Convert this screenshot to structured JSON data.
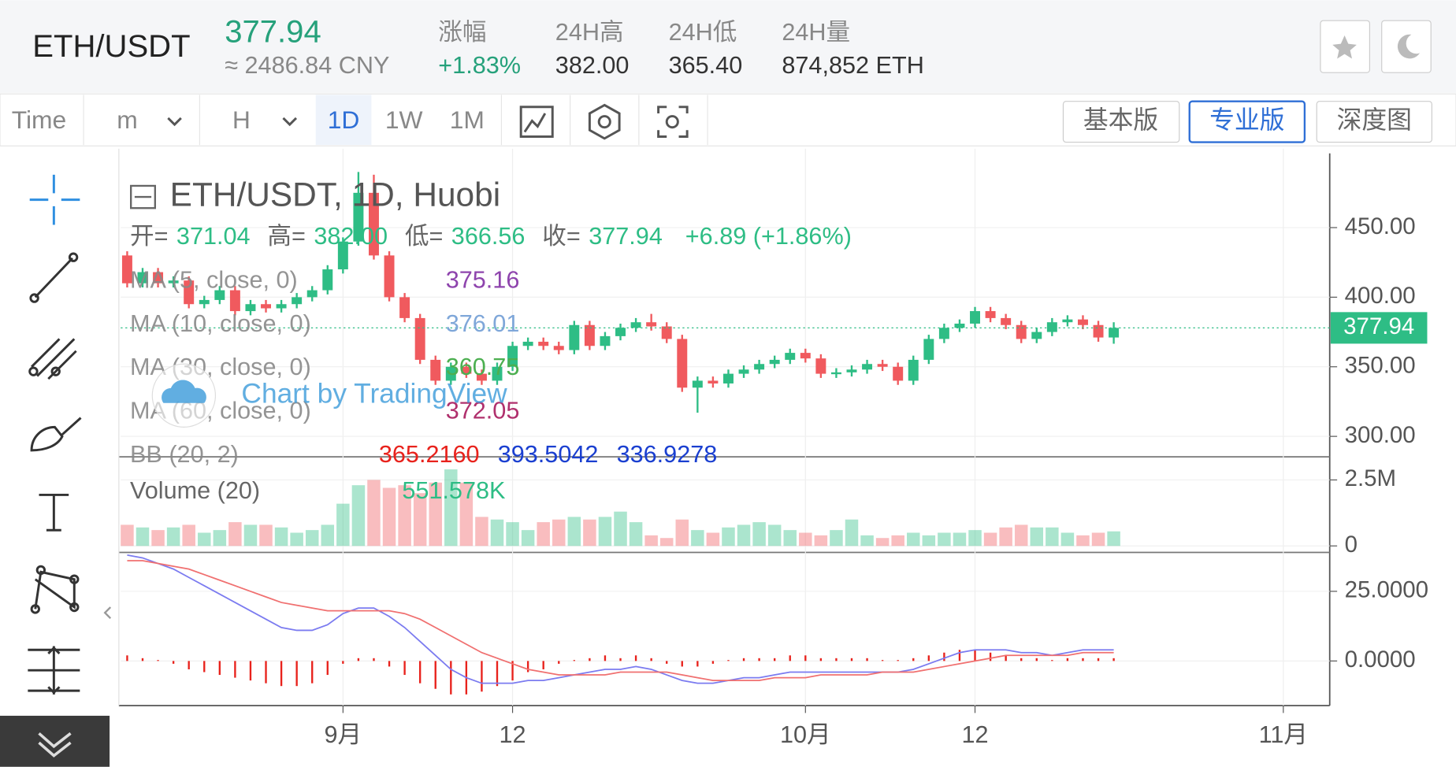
{
  "header": {
    "symbol": "ETH/USDT",
    "price": "377.94",
    "cny": "≈ 2486.84 CNY",
    "stats": [
      {
        "label": "涨幅",
        "value": "+1.83%"
      },
      {
        "label": "24H高",
        "value": "382.00"
      },
      {
        "label": "24H低",
        "value": "365.40"
      },
      {
        "label": "24H量",
        "value": "874,852 ETH"
      }
    ]
  },
  "toolbar": {
    "time": "Time",
    "intervals": [
      "m",
      "H",
      "1D",
      "1W",
      "1M"
    ],
    "versions": [
      "基本版",
      "专业版",
      "深度图"
    ]
  },
  "chart_data": {
    "type": "candlestick",
    "title": "ETH/USDT, 1D, Huobi",
    "ohlc_legend": [
      {
        "label": "开=",
        "value": "371.04"
      },
      {
        "label": "高=",
        "value": "382.00"
      },
      {
        "label": "低=",
        "value": "366.56"
      },
      {
        "label": "收=",
        "value": "377.94"
      }
    ],
    "change": "+6.89 (+1.86%)",
    "indicators": [
      {
        "name": "MA (5, close, 0)",
        "values": [
          "375.16"
        ],
        "colors": [
          "#8e44ad"
        ]
      },
      {
        "name": "MA (10, close, 0)",
        "values": [
          "376.01"
        ],
        "colors": [
          "#7fa7d9"
        ]
      },
      {
        "name": "MA (30, close, 0)",
        "values": [
          "360.75"
        ],
        "colors": [
          "#4caf50"
        ]
      },
      {
        "name": "MA (60, close, 0)",
        "values": [
          "372.05"
        ],
        "colors": [
          "#b0306d"
        ]
      },
      {
        "name": "BB (20, 2)",
        "values": [
          "365.2160",
          "393.5042",
          "336.9278"
        ],
        "colors": [
          "#e8221c",
          "#1a3fd0",
          "#1a3fd0"
        ]
      }
    ],
    "watermark": "Chart by TradingView",
    "up_color": "#2ebd85",
    "down_color": "#f05a5e",
    "x": [
      0,
      1,
      2,
      3,
      4,
      5,
      6,
      7,
      8,
      9,
      10,
      11,
      12,
      13,
      14,
      15,
      16,
      17,
      18,
      19,
      20,
      21,
      22,
      23,
      24,
      25,
      26,
      27,
      28,
      29,
      30,
      31,
      32,
      33,
      34,
      35,
      36,
      37,
      38,
      39,
      40,
      41,
      42,
      43,
      44,
      45,
      46,
      47,
      48,
      49,
      50,
      51,
      52,
      53,
      54,
      55,
      56,
      57,
      58,
      59,
      60,
      61,
      62,
      63,
      64
    ],
    "open": [
      430,
      410,
      418,
      410,
      412,
      395,
      398,
      405,
      390,
      395,
      392,
      395,
      400,
      405,
      420,
      440,
      475,
      430,
      400,
      385,
      355,
      340,
      350,
      345,
      340,
      350,
      365,
      368,
      365,
      362,
      380,
      365,
      372,
      378,
      382,
      379,
      370,
      335,
      340,
      338,
      345,
      348,
      352,
      355,
      360,
      356,
      345,
      346,
      348,
      352,
      350,
      340,
      355,
      370,
      378,
      381,
      390,
      385,
      380,
      370,
      375,
      382,
      384,
      380,
      371.04
    ],
    "high": [
      433,
      421,
      421,
      415,
      415,
      401,
      408,
      408,
      398,
      398,
      398,
      403,
      408,
      423,
      443,
      490,
      488,
      433,
      403,
      388,
      358,
      353,
      353,
      348,
      353,
      368,
      371,
      371,
      368,
      383,
      383,
      375,
      381,
      385,
      388,
      382,
      373,
      343,
      343,
      348,
      351,
      355,
      358,
      363,
      363,
      359,
      349,
      351,
      355,
      355,
      353,
      358,
      373,
      381,
      384,
      393,
      393,
      388,
      383,
      378,
      385,
      387,
      387,
      383,
      382
    ],
    "low": [
      407,
      407,
      407,
      407,
      392,
      392,
      395,
      387,
      387,
      389,
      389,
      392,
      397,
      402,
      417,
      437,
      427,
      397,
      382,
      352,
      337,
      337,
      342,
      337,
      337,
      347,
      362,
      362,
      359,
      359,
      362,
      362,
      369,
      375,
      376,
      367,
      332,
      317,
      335,
      335,
      342,
      345,
      349,
      352,
      353,
      342,
      342,
      343,
      345,
      347,
      337,
      337,
      352,
      367,
      375,
      378,
      382,
      377,
      367,
      367,
      372,
      379,
      377,
      368,
      366.56
    ],
    "close": [
      410,
      418,
      410,
      412,
      395,
      398,
      405,
      390,
      395,
      392,
      395,
      400,
      405,
      420,
      440,
      475,
      430,
      400,
      385,
      355,
      340,
      350,
      345,
      340,
      350,
      365,
      368,
      365,
      362,
      380,
      365,
      372,
      378,
      382,
      379,
      370,
      335,
      340,
      338,
      345,
      348,
      352,
      355,
      360,
      356,
      345,
      346,
      348,
      352,
      350,
      340,
      355,
      370,
      378,
      381,
      390,
      385,
      380,
      370,
      375,
      382,
      384,
      380,
      371.04,
      377.94
    ],
    "xlim": [
      -0.42,
      78.01
    ],
    "xticks": [
      {
        "value": 14,
        "label": "9月"
      },
      {
        "value": 25,
        "label": "12"
      },
      {
        "value": 44,
        "label": "10月"
      },
      {
        "value": 55,
        "label": "12"
      },
      {
        "value": 75,
        "label": "11月"
      }
    ],
    "ylim": [
      285.3,
      506.7
    ],
    "yticks": [
      {
        "value": 300,
        "label": "300.00"
      },
      {
        "value": 350,
        "label": "350.00"
      },
      {
        "value": 400,
        "label": "400.00"
      },
      {
        "value": 450,
        "label": "450.00"
      }
    ],
    "last_label": "377.94",
    "volume": {
      "title": "Volume (20)",
      "legend": "551.578K",
      "ylim": [
        0,
        3200000
      ],
      "yticks": [
        0,
        {
          "value": 2500000,
          "label": "2.5M"
        }
      ],
      "values": [
        800000,
        700000,
        600000,
        700000,
        800000,
        500000,
        600000,
        900000,
        800000,
        800000,
        700000,
        500000,
        600000,
        800000,
        1600000,
        2300000,
        2500000,
        2200000,
        2300000,
        2000000,
        2400000,
        2900000,
        2400000,
        1100000,
        1000000,
        900000,
        600000,
        900000,
        1000000,
        1100000,
        1000000,
        1100000,
        1300000,
        900000,
        400000,
        300000,
        1000000,
        600000,
        500000,
        700000,
        800000,
        900000,
        800000,
        600000,
        500000,
        400000,
        600000,
        1000000,
        400000,
        300000,
        400000,
        500000,
        400000,
        500000,
        500000,
        600000,
        500000,
        700000,
        800000,
        700000,
        700000,
        500000,
        400000,
        500000,
        551578
      ]
    },
    "macd": {
      "ylim": [
        -16,
        38.3
      ],
      "yticks": [
        {
          "value": 0,
          "label": "0.0000"
        },
        {
          "value": 25,
          "label": "25.0000"
        }
      ],
      "dif_color": "#7b7bf0",
      "dea_color": "#f07070",
      "hist_color": "#e8221c",
      "dif": [
        38,
        37,
        35,
        33,
        30,
        27,
        24,
        21,
        18,
        15,
        12,
        11,
        11,
        13,
        17,
        19,
        19,
        16,
        12,
        7,
        2,
        -3,
        -6,
        -8,
        -8,
        -8,
        -7,
        -7,
        -6,
        -5,
        -4,
        -3,
        -3,
        -2,
        -3,
        -5,
        -7,
        -8,
        -8,
        -7,
        -6,
        -6,
        -5,
        -4,
        -4,
        -4,
        -4,
        -4,
        -4,
        -4,
        -4,
        -3,
        -1,
        1,
        3,
        4,
        4,
        4,
        3,
        3,
        2,
        3,
        4,
        4,
        4
      ],
      "dea": [
        36,
        36,
        35,
        34,
        33,
        31,
        29,
        27,
        25,
        23,
        21,
        20,
        19,
        18,
        18,
        18,
        18,
        18,
        17,
        15,
        12,
        9,
        6,
        3,
        1,
        -1,
        -3,
        -4,
        -5,
        -5,
        -5,
        -5,
        -4,
        -4,
        -4,
        -4,
        -5,
        -6,
        -7,
        -7,
        -7,
        -7,
        -6,
        -6,
        -6,
        -5,
        -5,
        -5,
        -5,
        -4,
        -4,
        -4,
        -3,
        -2,
        -1,
        0,
        1,
        2,
        2,
        2,
        2,
        2,
        3,
        3,
        3
      ],
      "hist": [
        2,
        1,
        0,
        -1,
        -3,
        -4,
        -5,
        -6,
        -7,
        -8,
        -9,
        -9,
        -8,
        -5,
        -1,
        1,
        1,
        -2,
        -5,
        -8,
        -10,
        -12,
        -12,
        -11,
        -9,
        -7,
        -4,
        -3,
        -1,
        0,
        1,
        2,
        1,
        2,
        1,
        -1,
        -2,
        -2,
        -1,
        0,
        1,
        1,
        1,
        2,
        2,
        1,
        1,
        1,
        1,
        0,
        0,
        1,
        2,
        3,
        4,
        4,
        3,
        2,
        1,
        1,
        0,
        1,
        1,
        1,
        1
      ]
    }
  }
}
